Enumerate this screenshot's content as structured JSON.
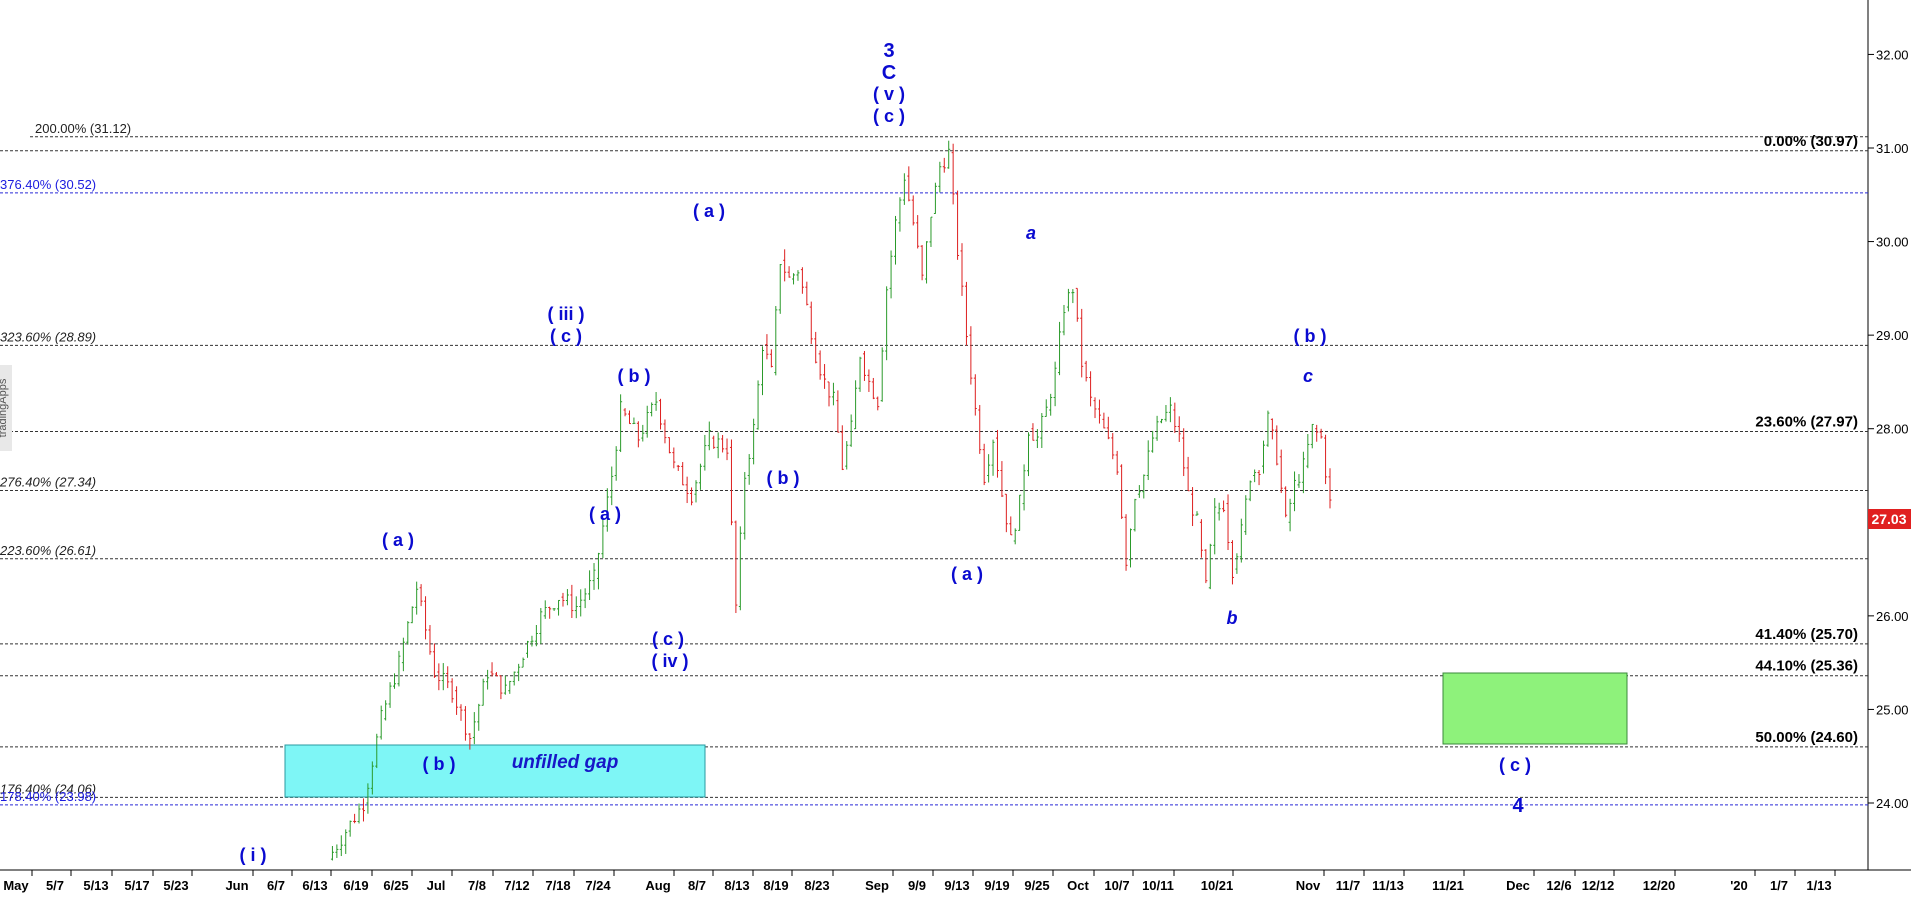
{
  "chart_data": {
    "type": "candlestick",
    "title": "",
    "xlabel": "",
    "ylabel": "",
    "ylim": [
      23.2,
      32.5
    ],
    "y_ticks": [
      "32.00",
      "31.00",
      "30.00",
      "29.00",
      "28.00",
      "27.00",
      "26.00",
      "25.00",
      "24.00"
    ],
    "x_ticks": [
      "May",
      "5/7",
      "5/13",
      "5/17",
      "5/23",
      "Jun",
      "6/7",
      "6/13",
      "6/19",
      "6/25",
      "Jul",
      "7/8",
      "7/12",
      "7/18",
      "7/24",
      "Aug",
      "8/7",
      "8/13",
      "8/19",
      "8/23",
      "Sep",
      "9/9",
      "9/13",
      "9/19",
      "9/25",
      "Oct",
      "10/7",
      "10/11",
      "10/21",
      "Nov",
      "11/7",
      "11/13",
      "11/21",
      "Dec",
      "12/6",
      "12/12",
      "12/20",
      "'20",
      "1/7",
      "1/13"
    ],
    "last_price": "27.03",
    "price_path": [
      [
        17,
        23.4
      ],
      [
        19,
        23.7
      ],
      [
        21,
        24.0
      ],
      [
        23,
        24.9
      ],
      [
        25,
        25.5
      ],
      [
        27,
        26.3
      ],
      [
        29,
        25.4
      ],
      [
        31,
        25.2
      ],
      [
        33,
        24.7
      ],
      [
        35,
        25.4
      ],
      [
        37,
        25.2
      ],
      [
        39,
        25.6
      ],
      [
        41,
        26.0
      ],
      [
        43,
        26.2
      ],
      [
        45,
        26.1
      ],
      [
        47,
        26.4
      ],
      [
        49,
        27.5
      ],
      [
        50,
        28.2
      ],
      [
        52,
        27.9
      ],
      [
        54,
        28.3
      ],
      [
        56,
        27.6
      ],
      [
        58,
        27.3
      ],
      [
        60,
        27.9
      ],
      [
        62,
        27.8
      ],
      [
        63,
        26.1
      ],
      [
        64,
        27.5
      ],
      [
        65,
        28.0
      ],
      [
        66,
        28.9
      ],
      [
        67,
        28.6
      ],
      [
        68,
        29.8
      ],
      [
        69,
        29.6
      ],
      [
        70,
        29.7
      ],
      [
        71,
        29.3
      ],
      [
        72,
        28.8
      ],
      [
        73,
        28.5
      ],
      [
        74,
        28.3
      ],
      [
        75,
        27.6
      ],
      [
        76,
        28.0
      ],
      [
        77,
        28.8
      ],
      [
        78,
        28.5
      ],
      [
        79,
        28.3
      ],
      [
        80,
        29.5
      ],
      [
        81,
        30.2
      ],
      [
        82,
        30.7
      ],
      [
        83,
        30.2
      ],
      [
        84,
        29.6
      ],
      [
        85,
        30.3
      ],
      [
        86,
        30.8
      ],
      [
        87,
        30.95
      ],
      [
        88,
        29.9
      ],
      [
        89,
        29.0
      ],
      [
        90,
        28.2
      ],
      [
        91,
        27.5
      ],
      [
        92,
        27.9
      ],
      [
        93,
        27.3
      ],
      [
        94,
        26.8
      ],
      [
        95,
        27.2
      ],
      [
        96,
        28.0
      ],
      [
        97,
        27.9
      ],
      [
        98,
        28.2
      ],
      [
        99,
        28.6
      ],
      [
        100,
        29.3
      ],
      [
        101,
        29.5
      ],
      [
        102,
        28.7
      ],
      [
        103,
        28.3
      ],
      [
        104,
        28.1
      ],
      [
        106,
        27.6
      ],
      [
        107,
        26.6
      ],
      [
        108,
        27.3
      ],
      [
        109,
        27.5
      ],
      [
        110,
        27.9
      ],
      [
        111,
        28.1
      ],
      [
        112,
        28.2
      ],
      [
        113,
        27.9
      ],
      [
        114,
        27.3
      ],
      [
        115,
        27.0
      ],
      [
        116,
        26.3
      ],
      [
        117,
        27.1
      ],
      [
        118,
        27.2
      ],
      [
        119,
        26.5
      ],
      [
        120,
        26.9
      ],
      [
        121,
        27.5
      ],
      [
        122,
        27.6
      ],
      [
        123,
        28.1
      ],
      [
        124,
        27.7
      ],
      [
        125,
        27.0
      ],
      [
        126,
        27.4
      ],
      [
        127,
        27.6
      ],
      [
        128,
        28.0
      ],
      [
        129,
        27.9
      ],
      [
        130,
        27.2
      ]
    ],
    "fib_levels": [
      {
        "label": "0.00% (30.97)",
        "value": 30.97
      },
      {
        "label": "23.60% (27.97)",
        "value": 27.97
      },
      {
        "label": "41.40% (25.70)",
        "value": 25.7
      },
      {
        "label": "44.10% (25.36)",
        "value": 25.36
      },
      {
        "label": "50.00% (24.60)",
        "value": 24.6
      }
    ],
    "extension_levels": [
      {
        "label": "200.00% (31.12)",
        "value": 31.12
      },
      {
        "label": "376.40% (30.52)",
        "value": 30.52
      },
      {
        "label": "323.60% (28.89)",
        "value": 28.89
      },
      {
        "label": "276.40% (27.34)",
        "value": 27.34
      },
      {
        "label": "223.60% (26.61)",
        "value": 26.61
      },
      {
        "label": "176.40% (24.06)",
        "value": 24.06
      },
      {
        "label": "178.40% (23.98)",
        "value": 23.98
      }
    ],
    "wave_labels": {
      "top": [
        "3",
        "C",
        "( v )",
        "( c )"
      ],
      "iii": [
        "( iii )",
        "( c )"
      ],
      "iv": [
        "( c )",
        "( iv )"
      ],
      "i": "( i )",
      "a1": "( a )",
      "b1": "( b )",
      "a2": "( a )",
      "b2": "( b )",
      "a3": "( a )",
      "b3": "( b )",
      "a4": "( a )",
      "a_small": "a",
      "b_small": "b",
      "c_small": "c",
      "b_paren": "( b )",
      "c_paren": "( c )",
      "four": "4"
    },
    "annotations": {
      "gap": "unfilled gap",
      "watermark": "tradingApps"
    },
    "colors": {
      "up": "#2a9a2a",
      "down": "#dd1f1f",
      "wave": "#0a0ad0",
      "gap_box": "#7ef6f6",
      "target_box": "#8ef27b",
      "price_tag": "#e02020"
    }
  }
}
